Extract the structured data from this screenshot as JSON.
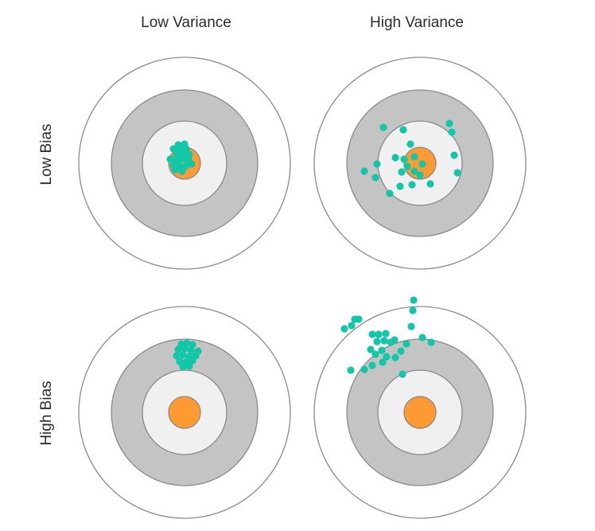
{
  "labels": {
    "col_low_variance": "Low Variance",
    "col_high_variance": "High Variance",
    "row_low_bias": "Low Bias",
    "row_high_bias": "High Bias"
  },
  "colors": {
    "ring_stroke": "#8a8a8a",
    "outer_ring_fill": "#ffffff",
    "middle_ring_fill": "#c4c4c4",
    "inner_ring_fill": "#f0f0f0",
    "bullseye_fill": "#ff9a33",
    "shot_fill": "#12c7a8"
  }
}
